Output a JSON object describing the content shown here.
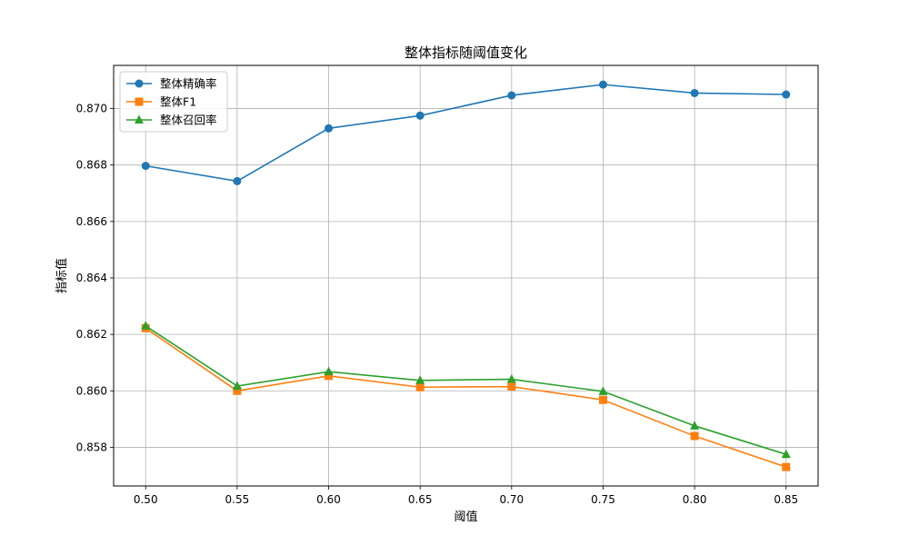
{
  "chart_data": {
    "type": "line",
    "title": "整体指标随阈值变化",
    "xlabel": "阈值",
    "ylabel": "指标值",
    "x": [
      0.5,
      0.55,
      0.6,
      0.65,
      0.7,
      0.75,
      0.8,
      0.85
    ],
    "x_tick_labels": [
      "0.50",
      "0.55",
      "0.60",
      "0.65",
      "0.70",
      "0.75",
      "0.80",
      "0.85"
    ],
    "xlim": [
      0.4825,
      0.8675
    ],
    "ylim": [
      0.85663,
      0.87153
    ],
    "y_ticks": [
      0.858,
      0.86,
      0.862,
      0.864,
      0.866,
      0.868,
      0.87
    ],
    "y_tick_labels": [
      "0.858",
      "0.860",
      "0.862",
      "0.864",
      "0.866",
      "0.868",
      "0.870"
    ],
    "grid": true,
    "legend_position": "top-left",
    "series": [
      {
        "name": "整体精确率",
        "color": "#1f77b4",
        "marker": "circle",
        "values": [
          0.86797,
          0.86743,
          0.8693,
          0.86975,
          0.87047,
          0.87085,
          0.87055,
          0.8705
        ]
      },
      {
        "name": "整体F1",
        "color": "#ff7f0e",
        "marker": "square",
        "values": [
          0.86222,
          0.86,
          0.86053,
          0.86013,
          0.86015,
          0.85968,
          0.8584,
          0.8573
        ]
      },
      {
        "name": "整体召回率",
        "color": "#2ca02c",
        "marker": "triangle",
        "values": [
          0.8623,
          0.86017,
          0.86068,
          0.86037,
          0.86041,
          0.85998,
          0.85876,
          0.85775
        ]
      }
    ]
  }
}
